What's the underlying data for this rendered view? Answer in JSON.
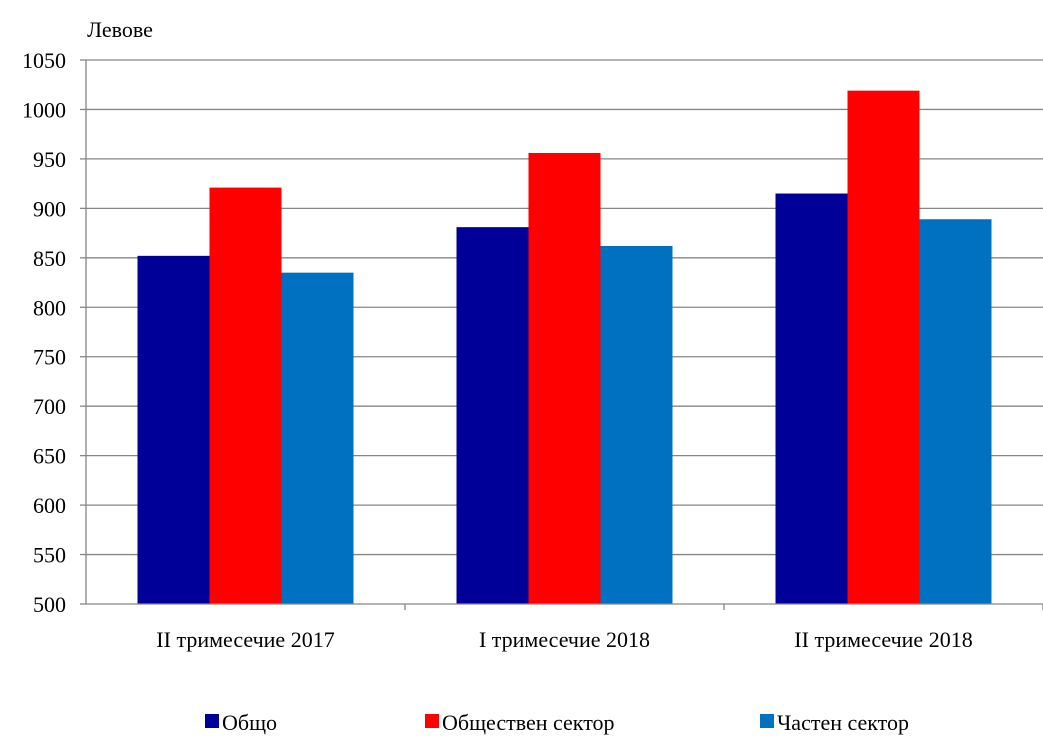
{
  "chart_data": {
    "type": "bar",
    "ylabel": "Левове",
    "ylim": [
      500,
      1050
    ],
    "yticks": [
      500,
      550,
      600,
      650,
      700,
      750,
      800,
      850,
      900,
      950,
      1000,
      1050
    ],
    "grid": true,
    "legend_position": "bottom",
    "categories": [
      "II тримесечие 2017",
      "I тримесечие 2018",
      "II тримесечие 2018"
    ],
    "series": [
      {
        "name": "Общо",
        "color": "#000099",
        "values": [
          852,
          881,
          915
        ]
      },
      {
        "name": "Обществен сектор",
        "color": "#ff0000",
        "values": [
          921,
          956,
          1019
        ]
      },
      {
        "name": "Частен сектор",
        "color": "#0070c0",
        "values": [
          835,
          862,
          889
        ]
      }
    ]
  }
}
